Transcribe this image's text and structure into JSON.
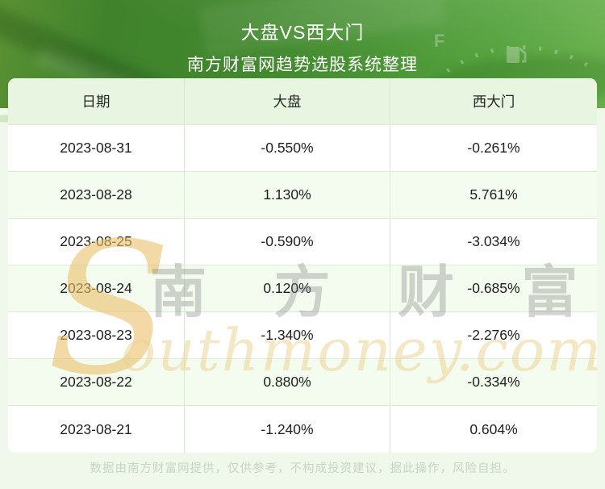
{
  "header": {
    "title": "大盘VS西大门",
    "subtitle": "南方财富网趋势选股系统整理"
  },
  "table": {
    "columns": [
      "日期",
      "大盘",
      "西大门"
    ],
    "rows": [
      [
        "2023-08-31",
        "-0.550%",
        "-0.261%"
      ],
      [
        "2023-08-28",
        "1.130%",
        "5.761%"
      ],
      [
        "2023-08-25",
        "-0.590%",
        "-3.034%"
      ],
      [
        "2023-08-24",
        "0.120%",
        "-0.685%"
      ],
      [
        "2023-08-23",
        "-1.340%",
        "-2.276%"
      ],
      [
        "2023-08-22",
        "0.880%",
        "-0.334%"
      ],
      [
        "2023-08-21",
        "-1.240%",
        "0.604%"
      ]
    ]
  },
  "chart_data": {
    "type": "table",
    "title": "大盘VS西大门",
    "subtitle": "南方财富网趋势选股系统整理",
    "columns": [
      "日期",
      "大盘",
      "西大门"
    ],
    "categories": [
      "2023-08-31",
      "2023-08-28",
      "2023-08-25",
      "2023-08-24",
      "2023-08-23",
      "2023-08-22",
      "2023-08-21"
    ],
    "series": [
      {
        "name": "大盘",
        "unit": "%",
        "values": [
          -0.55,
          1.13,
          -0.59,
          0.12,
          -1.34,
          0.88,
          -1.24
        ]
      },
      {
        "name": "西大门",
        "unit": "%",
        "values": [
          -0.261,
          5.761,
          -3.034,
          -0.685,
          -2.276,
          -0.334,
          0.604
        ]
      }
    ]
  },
  "watermark": {
    "latin_initial": "S",
    "latin_rest": "outhmoney.com",
    "cjk": "南 方 财 富 网"
  },
  "footer": {
    "disclaimer": "数据由南方财富网提供，仅供参考，不构成投资建议，据此操作，风险自担。"
  },
  "colors": {
    "banner_green": "#4b9636",
    "header_row_bg": "#e7f5e1",
    "alt_row_bg": "#f4fcf0",
    "page_bg": "#eff8ea",
    "divider": "#d9e9d3",
    "watermark_gold": "#e9c06a",
    "watermark_gray": "#7d7d7d",
    "footer_text": "#c7d5c3"
  }
}
